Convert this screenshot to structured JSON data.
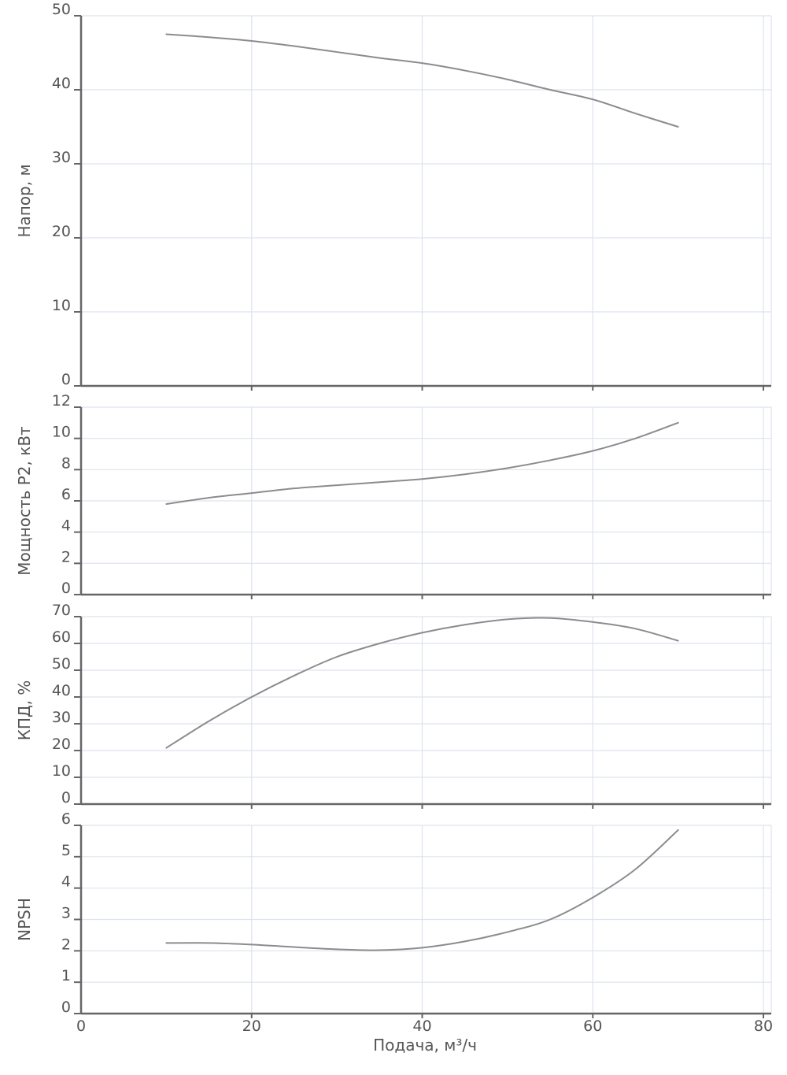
{
  "chart_data": {
    "type": "line",
    "shared_x": {
      "label": "Подача, м³/ч",
      "range": [
        0,
        80
      ],
      "ticks": [
        0,
        20,
        40,
        60,
        80
      ],
      "tick_labels": [
        "0",
        "20",
        "40",
        "60",
        "80"
      ]
    },
    "grid": true,
    "line_color": "#8c8c8c",
    "panels": [
      {
        "id": "head",
        "ylabel": "Напор, м",
        "ylim": [
          0,
          50
        ],
        "yticks": [
          0,
          10,
          20,
          30,
          40,
          50
        ],
        "ytick_labels": [
          "0",
          "10",
          "20",
          "30",
          "40",
          "50"
        ],
        "series": [
          {
            "x": [
              10,
              15,
              20,
              25,
              30,
              35,
              40,
              45,
              50,
              55,
              60,
              65,
              70
            ],
            "y": [
              47.5,
              47.1,
              46.6,
              45.9,
              45.1,
              44.3,
              43.6,
              42.6,
              41.4,
              40.0,
              38.7,
              36.8,
              35.0
            ]
          }
        ]
      },
      {
        "id": "power",
        "ylabel": "Мощность P2, кВт",
        "ylim": [
          0,
          12
        ],
        "yticks": [
          0,
          2,
          4,
          6,
          8,
          10,
          12
        ],
        "ytick_labels": [
          "0",
          "2",
          "4",
          "6",
          "8",
          "10",
          "12"
        ],
        "series": [
          {
            "x": [
              10,
              15,
              20,
              25,
              30,
              35,
              40,
              45,
              50,
              55,
              60,
              65,
              70
            ],
            "y": [
              5.8,
              6.2,
              6.5,
              6.8,
              7.0,
              7.2,
              7.4,
              7.7,
              8.1,
              8.6,
              9.2,
              10.0,
              11.0
            ]
          }
        ]
      },
      {
        "id": "efficiency",
        "ylabel": "КПД, %",
        "ylim": [
          0,
          70
        ],
        "yticks": [
          0,
          10,
          20,
          30,
          40,
          50,
          60,
          70
        ],
        "ytick_labels": [
          "0",
          "10",
          "20",
          "30",
          "40",
          "50",
          "60",
          "70"
        ],
        "series": [
          {
            "x": [
              10,
              15,
              20,
              25,
              30,
              35,
              40,
              45,
              50,
              55,
              60,
              65,
              70
            ],
            "y": [
              21,
              31,
              40,
              48,
              55,
              60,
              64,
              67,
              69,
              69.5,
              68,
              65.5,
              61
            ]
          }
        ]
      },
      {
        "id": "npsh",
        "ylabel": "NPSH",
        "ylim": [
          0,
          6
        ],
        "yticks": [
          0,
          1,
          2,
          3,
          4,
          5,
          6
        ],
        "ytick_labels": [
          "0",
          "1",
          "2",
          "3",
          "4",
          "5",
          "6"
        ],
        "series": [
          {
            "x": [
              10,
              15,
              20,
              25,
              30,
              35,
              40,
              45,
              50,
              55,
              60,
              65,
              70
            ],
            "y": [
              2.25,
              2.25,
              2.2,
              2.12,
              2.05,
              2.02,
              2.1,
              2.3,
              2.6,
              3.0,
              3.7,
              4.6,
              5.85
            ]
          }
        ]
      }
    ]
  }
}
